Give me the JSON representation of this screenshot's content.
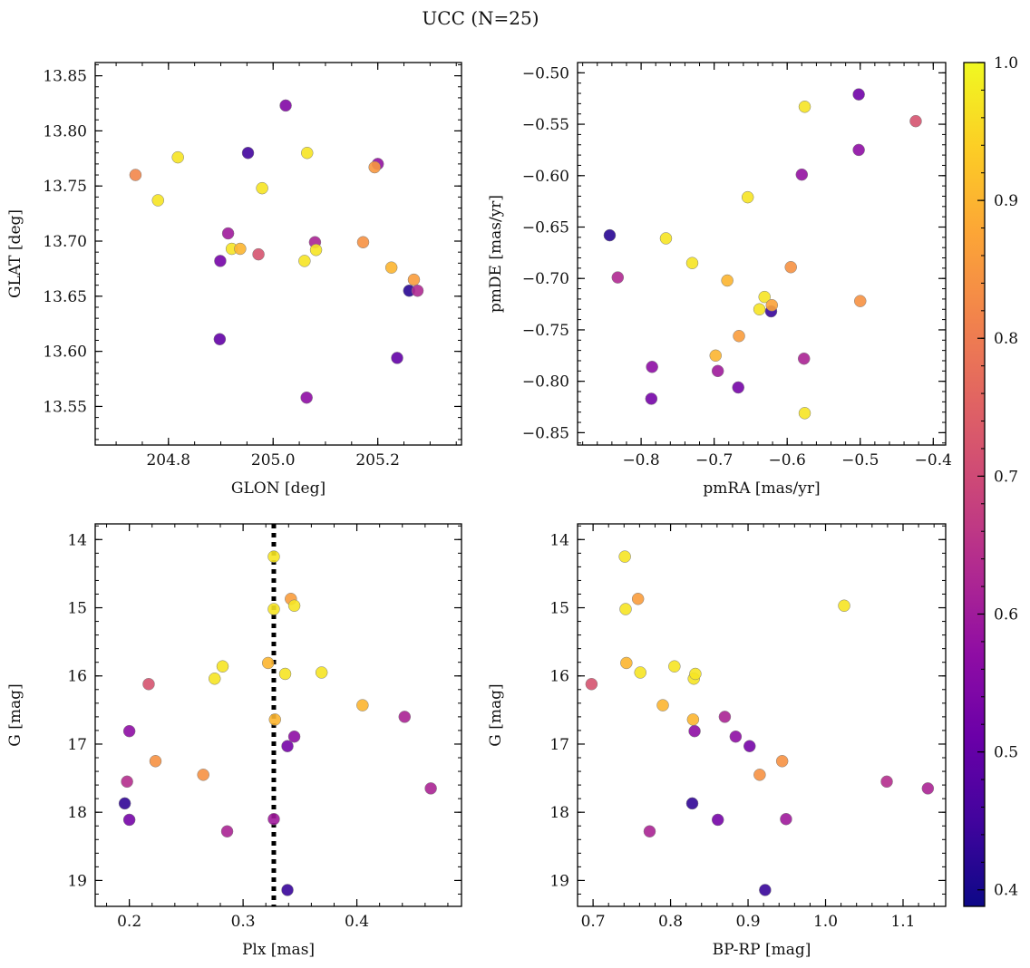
{
  "figure": {
    "title": "UCC (N=25)"
  },
  "chart_data": [
    {
      "type": "scatter",
      "xlabel": "GLON [deg]",
      "ylabel": "GLAT [deg]",
      "xlim": [
        204.66,
        205.36
      ],
      "ylim": [
        13.515,
        13.862
      ],
      "y_inverted": false,
      "xticks": [
        {
          "value": 204.8,
          "label": "204.8"
        },
        {
          "value": 205.0,
          "label": "205.0"
        },
        {
          "value": 205.2,
          "label": "205.2"
        }
      ],
      "yticks": [
        {
          "value": 13.55,
          "label": "13.55"
        },
        {
          "value": 13.6,
          "label": "13.60"
        },
        {
          "value": 13.65,
          "label": "13.65"
        },
        {
          "value": 13.7,
          "label": "13.70"
        },
        {
          "value": 13.75,
          "label": "13.75"
        },
        {
          "value": 13.8,
          "label": "13.80"
        },
        {
          "value": 13.85,
          "label": "13.85"
        }
      ],
      "x_minor_step": 0.05,
      "y_minor_step": 0.01,
      "points": [
        {
          "x": 204.737,
          "y": 13.76,
          "c": 0.82
        },
        {
          "x": 204.78,
          "y": 13.737,
          "c": 0.97
        },
        {
          "x": 204.818,
          "y": 13.776,
          "c": 0.97
        },
        {
          "x": 204.899,
          "y": 13.682,
          "c": 0.53
        },
        {
          "x": 204.898,
          "y": 13.611,
          "c": 0.5
        },
        {
          "x": 204.914,
          "y": 13.707,
          "c": 0.6
        },
        {
          "x": 204.921,
          "y": 13.693,
          "c": 0.97
        },
        {
          "x": 204.937,
          "y": 13.693,
          "c": 0.9
        },
        {
          "x": 204.952,
          "y": 13.78,
          "c": 0.45
        },
        {
          "x": 204.972,
          "y": 13.688,
          "c": 0.72
        },
        {
          "x": 204.979,
          "y": 13.748,
          "c": 0.97
        },
        {
          "x": 205.024,
          "y": 13.823,
          "c": 0.55
        },
        {
          "x": 205.06,
          "y": 13.682,
          "c": 0.97
        },
        {
          "x": 205.065,
          "y": 13.78,
          "c": 0.97
        },
        {
          "x": 205.064,
          "y": 13.558,
          "c": 0.57
        },
        {
          "x": 205.08,
          "y": 13.699,
          "c": 0.62
        },
        {
          "x": 205.082,
          "y": 13.692,
          "c": 0.97
        },
        {
          "x": 205.172,
          "y": 13.699,
          "c": 0.84
        },
        {
          "x": 205.2,
          "y": 13.77,
          "c": 0.58
        },
        {
          "x": 205.194,
          "y": 13.767,
          "c": 0.85
        },
        {
          "x": 205.226,
          "y": 13.676,
          "c": 0.9
        },
        {
          "x": 205.237,
          "y": 13.594,
          "c": 0.5
        },
        {
          "x": 205.26,
          "y": 13.655,
          "c": 0.42
        },
        {
          "x": 205.269,
          "y": 13.665,
          "c": 0.86
        },
        {
          "x": 205.276,
          "y": 13.655,
          "c": 0.63
        }
      ]
    },
    {
      "type": "scatter",
      "xlabel": "pmRA [mas/yr]",
      "ylabel": "pmDE [mas/yr]",
      "xlim": [
        -0.887,
        -0.383
      ],
      "ylim": [
        -0.862,
        -0.49
      ],
      "y_inverted": false,
      "xticks": [
        {
          "value": -0.8,
          "label": "−0.8"
        },
        {
          "value": -0.7,
          "label": "−0.7"
        },
        {
          "value": -0.6,
          "label": "−0.6"
        },
        {
          "value": -0.5,
          "label": "−0.5"
        },
        {
          "value": -0.4,
          "label": "−0.4"
        }
      ],
      "yticks": [
        {
          "value": -0.85,
          "label": "−0.85"
        },
        {
          "value": -0.8,
          "label": "−0.80"
        },
        {
          "value": -0.75,
          "label": "−0.75"
        },
        {
          "value": -0.7,
          "label": "−0.70"
        },
        {
          "value": -0.65,
          "label": "−0.65"
        },
        {
          "value": -0.6,
          "label": "−0.60"
        },
        {
          "value": -0.55,
          "label": "−0.55"
        },
        {
          "value": -0.5,
          "label": "−0.50"
        }
      ],
      "x_minor_step": 0.02,
      "y_minor_step": 0.01,
      "points": [
        {
          "x": -0.843,
          "y": -0.658,
          "c": 0.42
        },
        {
          "x": -0.832,
          "y": -0.699,
          "c": 0.63
        },
        {
          "x": -0.785,
          "y": -0.786,
          "c": 0.57
        },
        {
          "x": -0.786,
          "y": -0.817,
          "c": 0.53
        },
        {
          "x": -0.766,
          "y": -0.661,
          "c": 0.97
        },
        {
          "x": -0.73,
          "y": -0.685,
          "c": 0.97
        },
        {
          "x": -0.698,
          "y": -0.775,
          "c": 0.9
        },
        {
          "x": -0.695,
          "y": -0.79,
          "c": 0.6
        },
        {
          "x": -0.682,
          "y": -0.702,
          "c": 0.9
        },
        {
          "x": -0.666,
          "y": -0.756,
          "c": 0.86
        },
        {
          "x": -0.667,
          "y": -0.806,
          "c": 0.53
        },
        {
          "x": -0.654,
          "y": -0.621,
          "c": 0.97
        },
        {
          "x": -0.638,
          "y": -0.73,
          "c": 0.97
        },
        {
          "x": -0.631,
          "y": -0.718,
          "c": 0.97
        },
        {
          "x": -0.622,
          "y": -0.732,
          "c": 0.44
        },
        {
          "x": -0.621,
          "y": -0.726,
          "c": 0.87
        },
        {
          "x": -0.595,
          "y": -0.689,
          "c": 0.84
        },
        {
          "x": -0.58,
          "y": -0.599,
          "c": 0.58
        },
        {
          "x": -0.577,
          "y": -0.778,
          "c": 0.62
        },
        {
          "x": -0.576,
          "y": -0.533,
          "c": 0.97
        },
        {
          "x": -0.576,
          "y": -0.831,
          "c": 0.97
        },
        {
          "x": -0.502,
          "y": -0.521,
          "c": 0.52
        },
        {
          "x": -0.502,
          "y": -0.575,
          "c": 0.57
        },
        {
          "x": -0.5,
          "y": -0.722,
          "c": 0.84
        },
        {
          "x": -0.424,
          "y": -0.547,
          "c": 0.72
        }
      ]
    },
    {
      "type": "scatter",
      "xlabel": "Plx [mas]",
      "ylabel": "G [mag]",
      "xlim": [
        0.17,
        0.492
      ],
      "ylim": [
        13.77,
        19.38
      ],
      "y_inverted": true,
      "xticks": [
        {
          "value": 0.2,
          "label": "0.2"
        },
        {
          "value": 0.3,
          "label": "0.3"
        },
        {
          "value": 0.4,
          "label": "0.4"
        }
      ],
      "yticks": [
        {
          "value": 14,
          "label": "14"
        },
        {
          "value": 15,
          "label": "15"
        },
        {
          "value": 16,
          "label": "16"
        },
        {
          "value": 17,
          "label": "17"
        },
        {
          "value": 18,
          "label": "18"
        },
        {
          "value": 19,
          "label": "19"
        }
      ],
      "x_minor_step": 0.02,
      "y_minor_step": 0.2,
      "vline": 0.327,
      "points": [
        {
          "x": 0.196,
          "y": 17.87,
          "c": 0.43
        },
        {
          "x": 0.198,
          "y": 17.55,
          "c": 0.64
        },
        {
          "x": 0.2,
          "y": 16.81,
          "c": 0.57
        },
        {
          "x": 0.2,
          "y": 18.11,
          "c": 0.53
        },
        {
          "x": 0.217,
          "y": 16.12,
          "c": 0.72
        },
        {
          "x": 0.223,
          "y": 17.25,
          "c": 0.84
        },
        {
          "x": 0.265,
          "y": 17.45,
          "c": 0.84
        },
        {
          "x": 0.275,
          "y": 16.04,
          "c": 0.97
        },
        {
          "x": 0.282,
          "y": 15.86,
          "c": 0.97
        },
        {
          "x": 0.286,
          "y": 18.28,
          "c": 0.62
        },
        {
          "x": 0.322,
          "y": 15.81,
          "c": 0.9
        },
        {
          "x": 0.327,
          "y": 14.25,
          "c": 0.97
        },
        {
          "x": 0.327,
          "y": 15.02,
          "c": 0.97
        },
        {
          "x": 0.328,
          "y": 16.64,
          "c": 0.9
        },
        {
          "x": 0.327,
          "y": 18.1,
          "c": 0.6
        },
        {
          "x": 0.337,
          "y": 15.97,
          "c": 0.97
        },
        {
          "x": 0.339,
          "y": 17.03,
          "c": 0.53
        },
        {
          "x": 0.339,
          "y": 19.14,
          "c": 0.44
        },
        {
          "x": 0.342,
          "y": 14.87,
          "c": 0.86
        },
        {
          "x": 0.345,
          "y": 14.97,
          "c": 0.97
        },
        {
          "x": 0.345,
          "y": 16.89,
          "c": 0.57
        },
        {
          "x": 0.369,
          "y": 15.95,
          "c": 0.97
        },
        {
          "x": 0.405,
          "y": 16.43,
          "c": 0.9
        },
        {
          "x": 0.442,
          "y": 16.6,
          "c": 0.62
        },
        {
          "x": 0.465,
          "y": 17.65,
          "c": 0.62
        }
      ]
    },
    {
      "type": "scatter",
      "xlabel": "BP-RP [mag]",
      "ylabel": "G [mag]",
      "xlim": [
        0.68,
        1.155
      ],
      "ylim": [
        13.77,
        19.38
      ],
      "y_inverted": true,
      "xticks": [
        {
          "value": 0.7,
          "label": "0.7"
        },
        {
          "value": 0.8,
          "label": "0.8"
        },
        {
          "value": 0.9,
          "label": "0.9"
        },
        {
          "value": 1.0,
          "label": "1.0"
        },
        {
          "value": 1.1,
          "label": "1.1"
        }
      ],
      "yticks": [
        {
          "value": 14,
          "label": "14"
        },
        {
          "value": 15,
          "label": "15"
        },
        {
          "value": 16,
          "label": "16"
        },
        {
          "value": 17,
          "label": "17"
        },
        {
          "value": 18,
          "label": "18"
        },
        {
          "value": 19,
          "label": "19"
        }
      ],
      "x_minor_step": 0.02,
      "y_minor_step": 0.2,
      "points": [
        {
          "x": 0.698,
          "y": 16.12,
          "c": 0.72
        },
        {
          "x": 0.741,
          "y": 14.25,
          "c": 0.97
        },
        {
          "x": 0.742,
          "y": 15.02,
          "c": 0.97
        },
        {
          "x": 0.743,
          "y": 15.81,
          "c": 0.9
        },
        {
          "x": 0.758,
          "y": 14.87,
          "c": 0.86
        },
        {
          "x": 0.761,
          "y": 15.95,
          "c": 0.97
        },
        {
          "x": 0.773,
          "y": 18.28,
          "c": 0.62
        },
        {
          "x": 0.79,
          "y": 16.43,
          "c": 0.9
        },
        {
          "x": 0.805,
          "y": 15.86,
          "c": 0.97
        },
        {
          "x": 0.828,
          "y": 17.87,
          "c": 0.43
        },
        {
          "x": 0.829,
          "y": 16.64,
          "c": 0.9
        },
        {
          "x": 0.83,
          "y": 16.04,
          "c": 0.97
        },
        {
          "x": 0.832,
          "y": 15.97,
          "c": 0.97
        },
        {
          "x": 0.831,
          "y": 16.81,
          "c": 0.57
        },
        {
          "x": 0.861,
          "y": 18.11,
          "c": 0.53
        },
        {
          "x": 0.87,
          "y": 16.6,
          "c": 0.62
        },
        {
          "x": 0.884,
          "y": 16.89,
          "c": 0.57
        },
        {
          "x": 0.902,
          "y": 17.03,
          "c": 0.53
        },
        {
          "x": 0.915,
          "y": 17.45,
          "c": 0.84
        },
        {
          "x": 0.922,
          "y": 19.14,
          "c": 0.44
        },
        {
          "x": 0.944,
          "y": 17.25,
          "c": 0.84
        },
        {
          "x": 0.949,
          "y": 18.1,
          "c": 0.6
        },
        {
          "x": 1.024,
          "y": 14.97,
          "c": 0.97
        },
        {
          "x": 1.079,
          "y": 17.55,
          "c": 0.64
        },
        {
          "x": 1.132,
          "y": 17.65,
          "c": 0.62
        }
      ]
    }
  ],
  "colorbar": {
    "colormap": "plasma",
    "range": [
      0.388,
      1.0
    ],
    "ticks": [
      {
        "value": 0.4,
        "label": "0.4"
      },
      {
        "value": 0.5,
        "label": "0.5"
      },
      {
        "value": 0.6,
        "label": "0.6"
      },
      {
        "value": 0.7,
        "label": "0.7"
      },
      {
        "value": 0.8,
        "label": "0.8"
      },
      {
        "value": 0.9,
        "label": "0.9"
      },
      {
        "value": 1.0,
        "label": "1.0"
      }
    ],
    "minor_step": 0.02,
    "stops": [
      "#0d0887",
      "#41049d",
      "#6a00a8",
      "#8f0da4",
      "#b12a90",
      "#cc4778",
      "#e16462",
      "#f2844b",
      "#fca636",
      "#fcce25",
      "#f0f921"
    ]
  }
}
